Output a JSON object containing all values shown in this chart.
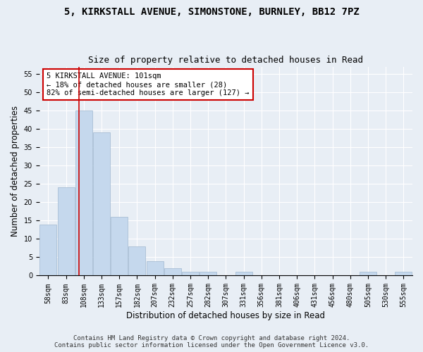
{
  "title1": "5, KIRKSTALL AVENUE, SIMONSTONE, BURNLEY, BB12 7PZ",
  "title2": "Size of property relative to detached houses in Read",
  "xlabel": "Distribution of detached houses by size in Read",
  "ylabel": "Number of detached properties",
  "bar_color": "#c5d8ed",
  "bar_edge_color": "#a0b8d0",
  "vline_color": "#cc0000",
  "vline_x": 101,
  "annotation_text": "5 KIRKSTALL AVENUE: 101sqm\n← 18% of detached houses are smaller (28)\n82% of semi-detached houses are larger (127) →",
  "annotation_box_color": "white",
  "annotation_box_edge_color": "#cc0000",
  "footer1": "Contains HM Land Registry data © Crown copyright and database right 2024.",
  "footer2": "Contains public sector information licensed under the Open Government Licence v3.0.",
  "bg_color": "#e8eef5",
  "plot_bg_color": "#e8eef5",
  "bins": [
    58,
    83,
    108,
    133,
    157,
    182,
    207,
    232,
    257,
    282,
    307,
    331,
    356,
    381,
    406,
    431,
    456,
    480,
    505,
    530,
    555
  ],
  "bin_labels": [
    "58sqm",
    "83sqm",
    "108sqm",
    "133sqm",
    "157sqm",
    "182sqm",
    "207sqm",
    "232sqm",
    "257sqm",
    "282sqm",
    "307sqm",
    "331sqm",
    "356sqm",
    "381sqm",
    "406sqm",
    "431sqm",
    "456sqm",
    "480sqm",
    "505sqm",
    "530sqm",
    "555sqm"
  ],
  "counts": [
    14,
    24,
    45,
    39,
    16,
    8,
    4,
    2,
    1,
    1,
    0,
    1,
    0,
    0,
    0,
    0,
    0,
    0,
    1,
    0,
    1
  ],
  "ylim": [
    0,
    57
  ],
  "yticks": [
    0,
    5,
    10,
    15,
    20,
    25,
    30,
    35,
    40,
    45,
    50,
    55
  ],
  "grid_color": "#ffffff",
  "title_fontsize": 10,
  "subtitle_fontsize": 9,
  "axis_label_fontsize": 8.5,
  "tick_fontsize": 7,
  "footer_fontsize": 6.5
}
